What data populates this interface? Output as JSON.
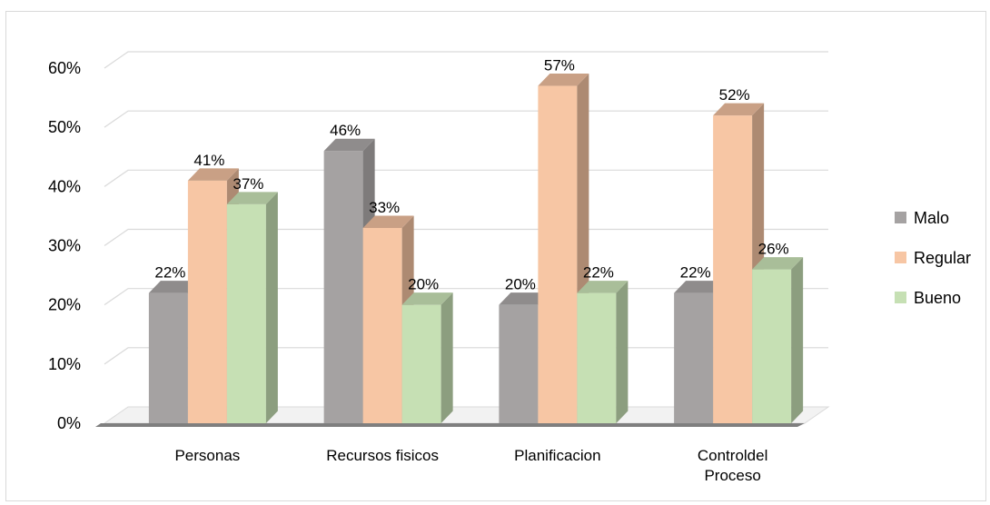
{
  "chart_data": {
    "type": "bar",
    "style": "3d-clustered-column",
    "categories": [
      "Personas",
      "Recursos fisicos",
      "Planificacion",
      "Controldel Proceso"
    ],
    "series": [
      {
        "name": "Malo",
        "values": [
          22,
          46,
          20,
          22
        ],
        "color": "#a5a2a2",
        "side_color": "#7e7b7b",
        "top_color": "#8f8c8c"
      },
      {
        "name": "Regular",
        "values": [
          41,
          33,
          57,
          52
        ],
        "color": "#f7c6a4",
        "side_color": "#ad8a72",
        "top_color": "#c9a085"
      },
      {
        "name": "Bueno",
        "values": [
          37,
          20,
          22,
          26
        ],
        "color": "#c6e0b4",
        "side_color": "#8c9e7f",
        "top_color": "#a9be99"
      }
    ],
    "y_ticks": [
      "0%",
      "10%",
      "20%",
      "30%",
      "40%",
      "50%",
      "60%"
    ],
    "ylim": [
      0,
      60
    ],
    "value_suffix": "%",
    "grid": true,
    "legend_position": "right",
    "gridline_color": "#d9d9d9",
    "floor_color": "#7f7f7f"
  }
}
